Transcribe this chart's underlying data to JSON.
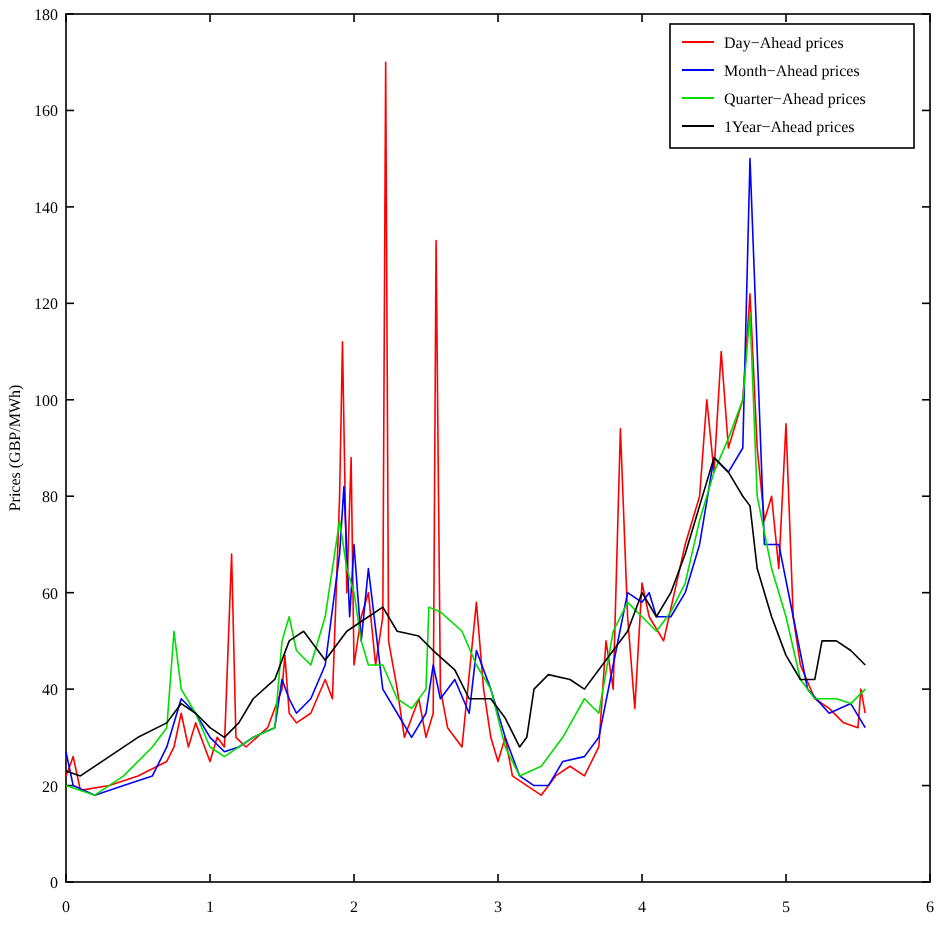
{
  "chart_data": {
    "type": "line",
    "ylabel": "Prices (GBP/MWh)",
    "xlim": [
      0,
      6
    ],
    "ylim": [
      0,
      180
    ],
    "xticks": [
      0,
      1,
      2,
      3,
      4,
      5,
      6
    ],
    "yticks": [
      0,
      20,
      40,
      60,
      80,
      100,
      120,
      140,
      160,
      180
    ],
    "legend": "top right",
    "grid": false,
    "line_style": "solid",
    "series": [
      {
        "name": "Day−Ahead prices",
        "color": "#ff0000",
        "x": [
          0,
          0.05,
          0.1,
          0.3,
          0.5,
          0.7,
          0.75,
          0.8,
          0.85,
          0.9,
          1.0,
          1.05,
          1.1,
          1.15,
          1.18,
          1.25,
          1.4,
          1.5,
          1.52,
          1.55,
          1.6,
          1.7,
          1.8,
          1.85,
          1.9,
          1.92,
          1.95,
          1.98,
          2.0,
          2.05,
          2.1,
          2.15,
          2.2,
          2.22,
          2.24,
          2.3,
          2.35,
          2.45,
          2.5,
          2.55,
          2.57,
          2.6,
          2.65,
          2.75,
          2.85,
          2.9,
          2.95,
          3.0,
          3.05,
          3.1,
          3.2,
          3.3,
          3.4,
          3.5,
          3.6,
          3.7,
          3.75,
          3.8,
          3.85,
          3.9,
          3.95,
          4.0,
          4.05,
          4.15,
          4.3,
          4.4,
          4.45,
          4.5,
          4.55,
          4.6,
          4.7,
          4.75,
          4.8,
          4.85,
          4.9,
          4.95,
          5.0,
          5.05,
          5.1,
          5.2,
          5.3,
          5.4,
          5.5,
          5.52,
          5.55
        ],
        "values": [
          22,
          26,
          19,
          20,
          22,
          25,
          28,
          35,
          28,
          33,
          25,
          30,
          28,
          68,
          30,
          28,
          32,
          40,
          47,
          35,
          33,
          35,
          42,
          38,
          80,
          112,
          60,
          88,
          45,
          55,
          60,
          45,
          55,
          170,
          50,
          40,
          30,
          38,
          30,
          35,
          133,
          40,
          32,
          28,
          58,
          40,
          30,
          25,
          30,
          22,
          20,
          18,
          22,
          24,
          22,
          28,
          50,
          40,
          94,
          55,
          36,
          62,
          55,
          50,
          70,
          80,
          100,
          85,
          110,
          90,
          100,
          122,
          90,
          75,
          80,
          65,
          95,
          55,
          45,
          38,
          36,
          33,
          32,
          40,
          35
        ]
      },
      {
        "name": "Month−Ahead prices",
        "color": "#0000ff",
        "x": [
          0,
          0.05,
          0.2,
          0.4,
          0.6,
          0.7,
          0.8,
          0.9,
          1.0,
          1.1,
          1.2,
          1.3,
          1.45,
          1.5,
          1.55,
          1.6,
          1.7,
          1.8,
          1.9,
          1.93,
          1.97,
          2.0,
          2.05,
          2.1,
          2.2,
          2.3,
          2.4,
          2.5,
          2.55,
          2.6,
          2.7,
          2.8,
          2.85,
          2.95,
          3.05,
          3.15,
          3.25,
          3.35,
          3.45,
          3.6,
          3.7,
          3.8,
          3.9,
          4.0,
          4.05,
          4.1,
          4.2,
          4.3,
          4.4,
          4.5,
          4.6,
          4.7,
          4.75,
          4.8,
          4.85,
          4.95,
          5.05,
          5.15,
          5.3,
          5.45,
          5.55
        ],
        "values": [
          27,
          20,
          18,
          20,
          22,
          28,
          38,
          35,
          30,
          27,
          28,
          30,
          32,
          42,
          38,
          35,
          38,
          45,
          68,
          82,
          55,
          70,
          50,
          65,
          40,
          35,
          30,
          35,
          45,
          38,
          42,
          35,
          48,
          40,
          30,
          22,
          20,
          20,
          25,
          26,
          30,
          45,
          60,
          58,
          60,
          55,
          55,
          60,
          70,
          88,
          85,
          90,
          150,
          110,
          70,
          70,
          55,
          40,
          35,
          37,
          32
        ]
      },
      {
        "name": "Quarter−Ahead prices",
        "color": "#00dd00",
        "x": [
          0,
          0.2,
          0.4,
          0.6,
          0.7,
          0.75,
          0.8,
          0.9,
          1.0,
          1.1,
          1.3,
          1.45,
          1.5,
          1.55,
          1.6,
          1.7,
          1.8,
          1.9,
          1.95,
          2.0,
          2.05,
          2.1,
          2.2,
          2.3,
          2.4,
          2.5,
          2.52,
          2.6,
          2.75,
          2.85,
          2.95,
          3.05,
          3.15,
          3.3,
          3.45,
          3.6,
          3.7,
          3.8,
          3.9,
          4.0,
          4.1,
          4.2,
          4.3,
          4.4,
          4.5,
          4.6,
          4.7,
          4.75,
          4.8,
          4.9,
          5.0,
          5.1,
          5.2,
          5.35,
          5.45,
          5.55
        ],
        "values": [
          20,
          18,
          22,
          28,
          32,
          52,
          40,
          35,
          28,
          26,
          30,
          32,
          50,
          55,
          48,
          45,
          55,
          75,
          65,
          60,
          50,
          45,
          45,
          38,
          36,
          40,
          57,
          56,
          52,
          45,
          40,
          28,
          22,
          24,
          30,
          38,
          35,
          52,
          58,
          55,
          52,
          56,
          62,
          75,
          85,
          92,
          100,
          118,
          80,
          65,
          55,
          42,
          38,
          38,
          37,
          40
        ]
      },
      {
        "name": "1Year−Ahead prices",
        "color": "#000000",
        "x": [
          0,
          0.1,
          0.3,
          0.5,
          0.7,
          0.8,
          0.9,
          1.0,
          1.1,
          1.2,
          1.3,
          1.45,
          1.55,
          1.65,
          1.8,
          1.95,
          2.1,
          2.2,
          2.3,
          2.45,
          2.55,
          2.7,
          2.8,
          2.95,
          3.05,
          3.15,
          3.2,
          3.25,
          3.35,
          3.5,
          3.6,
          3.7,
          3.8,
          3.9,
          4.0,
          4.1,
          4.2,
          4.3,
          4.4,
          4.5,
          4.6,
          4.7,
          4.75,
          4.8,
          4.9,
          5.0,
          5.1,
          5.2,
          5.25,
          5.35,
          5.45,
          5.55
        ],
        "values": [
          23,
          22,
          26,
          30,
          33,
          37,
          35,
          32,
          30,
          33,
          38,
          42,
          50,
          52,
          46,
          52,
          55,
          57,
          52,
          51,
          48,
          44,
          38,
          38,
          34,
          28,
          30,
          40,
          43,
          42,
          40,
          44,
          48,
          52,
          60,
          55,
          60,
          68,
          78,
          88,
          85,
          80,
          78,
          65,
          55,
          47,
          42,
          42,
          50,
          50,
          48,
          45
        ]
      }
    ]
  }
}
